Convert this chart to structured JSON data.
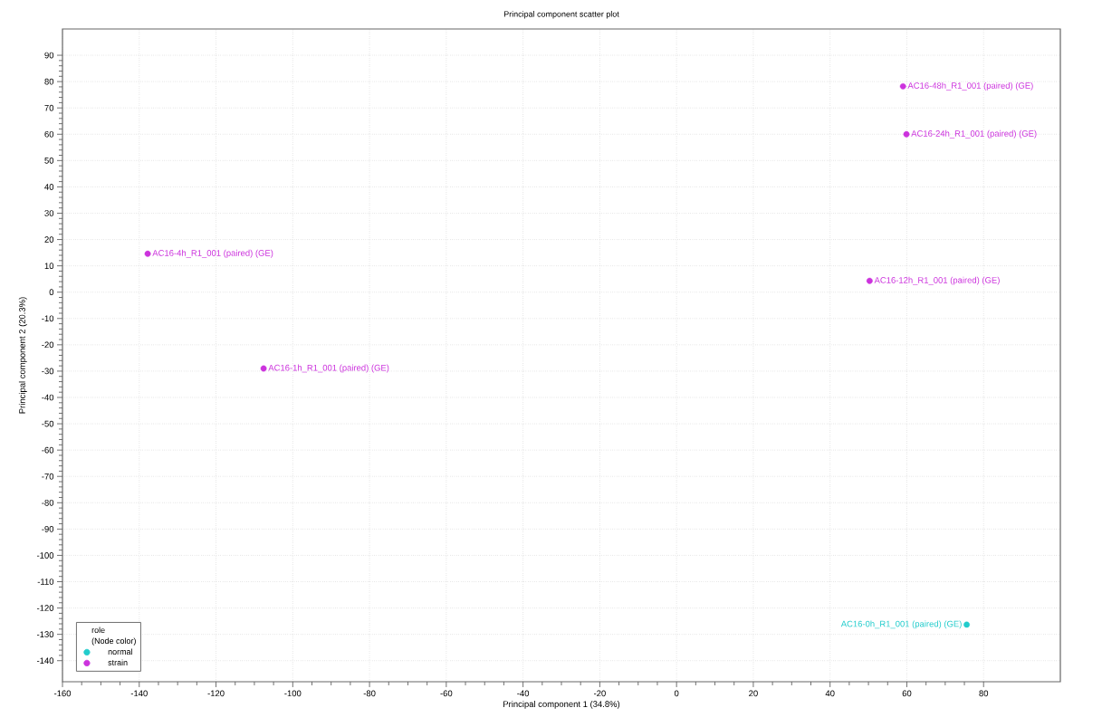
{
  "chart_data": {
    "type": "scatter",
    "title": "Principal component scatter plot",
    "xlabel": "Principal component 1 (34.8%)",
    "ylabel": "Principal component 2 (20.3%)",
    "legend_title": "role",
    "series": [
      {
        "name": "normal",
        "color": "#22cccc",
        "x": [
          75.6
        ],
        "values": [
          -126.3
        ]
      },
      {
        "name": "strain",
        "color": "#cc33dd",
        "x": [
          -137.8,
          -107.6,
          50.3,
          59.0,
          59.9
        ],
        "values": [
          14.6,
          -29.0,
          4.3,
          78.2,
          60.0
        ]
      }
    ],
    "annotations": [
      "(Node color)",
      {
        "text": "AC16-0h_R1_001 (paired) (GE)",
        "x": 75.6,
        "y": -126.3
      },
      {
        "text": "AC16-4h_R1_001 (paired) (GE)",
        "x": -137.8,
        "y": 14.6
      },
      {
        "text": "AC16-1h_R1_001 (paired) (GE)",
        "x": -107.6,
        "y": -29.0
      },
      {
        "text": "AC16-12h_R1_001 (paired) (GE)",
        "x": 50.3,
        "y": 4.3
      },
      {
        "text": "AC16-48h_R1_001 (paired) (GE)",
        "x": 59.0,
        "y": 78.2
      },
      {
        "text": "AC16-24h_R1_001 (paired) (GE)",
        "x": 59.9,
        "y": 60.0
      }
    ],
    "xlim": [
      -160,
      100
    ],
    "ylim": [
      -148,
      100
    ],
    "xticks": [
      -160,
      -140,
      -120,
      -100,
      -80,
      -60,
      -40,
      -20,
      0,
      20,
      40,
      60,
      80
    ],
    "yticks": [
      -140,
      -130,
      -120,
      -110,
      -100,
      -90,
      -80,
      -70,
      -60,
      -50,
      -40,
      -30,
      -20,
      -10,
      0,
      10,
      20,
      30,
      40,
      50,
      60,
      70,
      80,
      90
    ],
    "grid": true,
    "legend": "bottom left",
    "marker": "circle"
  }
}
